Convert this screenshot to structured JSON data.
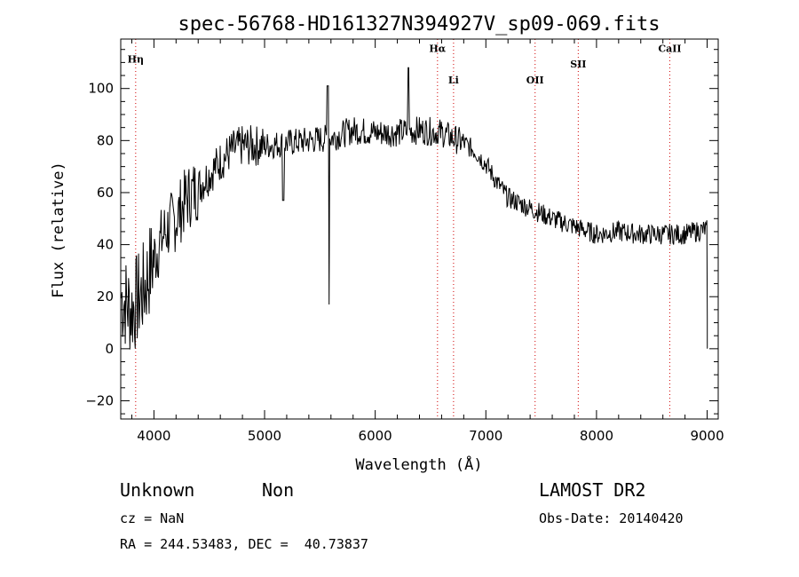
{
  "chart_data": {
    "type": "line",
    "title": "spec-56768-HD161327N394927V_sp09-069.fits",
    "xlabel": "Wavelength (Å)",
    "ylabel": "Flux (relative)",
    "xlim": [
      3700,
      9100
    ],
    "ylim": [
      -27,
      119
    ],
    "x_ticks": [
      4000,
      5000,
      6000,
      7000,
      8000,
      9000
    ],
    "y_ticks": [
      -20,
      0,
      20,
      40,
      60,
      80,
      100
    ],
    "spectral_lines": [
      {
        "name": "Hη",
        "x": 3835,
        "label_y": 110
      },
      {
        "name": "Hα",
        "x": 6563,
        "label_y": 114
      },
      {
        "name": "Li",
        "x": 6708,
        "label_y": 102
      },
      {
        "name": "OII",
        "x": 7445,
        "label_y": 102
      },
      {
        "name": "SII",
        "x": 7835,
        "label_y": 108
      },
      {
        "name": "CaII",
        "x": 8662,
        "label_y": 114
      }
    ],
    "line_color": "#d00000",
    "grid": false,
    "series": [
      {
        "color": "#000000",
        "continuum": [
          [
            3700,
            20
          ],
          [
            3800,
            15
          ],
          [
            3900,
            22
          ],
          [
            4000,
            35
          ],
          [
            4100,
            45
          ],
          [
            4200,
            50
          ],
          [
            4300,
            58
          ],
          [
            4400,
            62
          ],
          [
            4500,
            67
          ],
          [
            4600,
            72
          ],
          [
            4700,
            76
          ],
          [
            4800,
            78
          ],
          [
            5000,
            78
          ],
          [
            5200,
            79
          ],
          [
            5400,
            80
          ],
          [
            5600,
            81
          ],
          [
            5800,
            84
          ],
          [
            6000,
            83
          ],
          [
            6200,
            83
          ],
          [
            6400,
            84
          ],
          [
            6600,
            83
          ],
          [
            6800,
            79
          ],
          [
            6900,
            76
          ],
          [
            7000,
            71
          ],
          [
            7100,
            64
          ],
          [
            7200,
            58
          ],
          [
            7300,
            56
          ],
          [
            7400,
            54
          ],
          [
            7500,
            52
          ],
          [
            7600,
            50
          ],
          [
            7800,
            47
          ],
          [
            8000,
            44
          ],
          [
            8200,
            45
          ],
          [
            8400,
            44
          ],
          [
            8600,
            44
          ],
          [
            8800,
            44
          ],
          [
            9000,
            46
          ]
        ],
        "features": [
          {
            "x": 5577,
            "y": 17,
            "kind": "absorption"
          },
          {
            "x": 5570,
            "y": 101,
            "kind": "emission"
          },
          {
            "x": 6300,
            "y": 108,
            "kind": "emission"
          },
          {
            "x": 5170,
            "y": 57,
            "kind": "absorption"
          },
          {
            "x": 6563,
            "y": 79,
            "kind": "absorption"
          }
        ]
      }
    ]
  },
  "footer": {
    "class_label": "Unknown",
    "subclass_label": "Non",
    "survey": "LAMOST DR2",
    "cz": "cz = NaN",
    "obs_date": "Obs-Date: 20140420",
    "coords": "RA = 244.53483, DEC =  40.73837"
  }
}
